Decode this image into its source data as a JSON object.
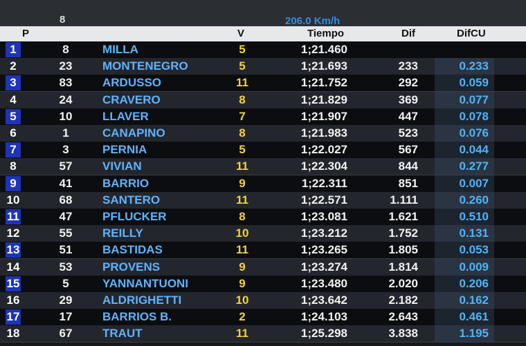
{
  "header": {
    "top_left": "8",
    "speed": "206.0 Km/h",
    "columns": {
      "pos": "P",
      "laps": "V",
      "time": "Tiempo",
      "diff": "Dif",
      "diff_cu": "DifCU"
    }
  },
  "table": {
    "rows": [
      [
        "1",
        "8",
        "MILLA",
        "5",
        "1;21.460",
        null,
        null
      ],
      [
        "2",
        "23",
        "MONTENEGRO",
        "5",
        "1;21.693",
        "233",
        "0.233"
      ],
      [
        "3",
        "83",
        "ARDUSSO",
        "11",
        "1;21.752",
        "292",
        "0.059"
      ],
      [
        "4",
        "24",
        "CRAVERO",
        "8",
        "1;21.829",
        "369",
        "0.077"
      ],
      [
        "5",
        "10",
        "LLAVER",
        "7",
        "1;21.907",
        "447",
        "0.078"
      ],
      [
        "6",
        "1",
        "CANAPINO",
        "8",
        "1;21.983",
        "523",
        "0.076"
      ],
      [
        "7",
        "3",
        "PERNIA",
        "5",
        "1;22.027",
        "567",
        "0.044"
      ],
      [
        "8",
        "57",
        "VIVIAN",
        "11",
        "1;22.304",
        "844",
        "0.277"
      ],
      [
        "9",
        "41",
        "BARRIO",
        "9",
        "1;22.311",
        "851",
        "0.007"
      ],
      [
        "10",
        "68",
        "SANTERO",
        "11",
        "1;22.571",
        "1.111",
        "0.260"
      ],
      [
        "11",
        "47",
        "PFLUCKER",
        "8",
        "1;23.081",
        "1.621",
        "0.510"
      ],
      [
        "12",
        "55",
        "REILLY",
        "10",
        "1;23.212",
        "1.752",
        "0.131"
      ],
      [
        "13",
        "51",
        "BASTIDAS",
        "11",
        "1;23.265",
        "1.805",
        "0.053"
      ],
      [
        "14",
        "53",
        "PROVENS",
        "9",
        "1;23.274",
        "1.814",
        "0.009"
      ],
      [
        "15",
        "5",
        "YANNANTUONI",
        "9",
        "1;23.480",
        "2.020",
        "0.206"
      ],
      [
        "16",
        "29",
        "ALDRIGHETTI",
        "10",
        "1;23.642",
        "2.182",
        "0.162"
      ],
      [
        "17",
        "17",
        "BARRIOS B.",
        "2",
        "1;24.103",
        "2.643",
        "0.461"
      ],
      [
        "18",
        "67",
        "TRAUT",
        "11",
        "1;25.298",
        "3.838",
        "1.195"
      ]
    ]
  }
}
